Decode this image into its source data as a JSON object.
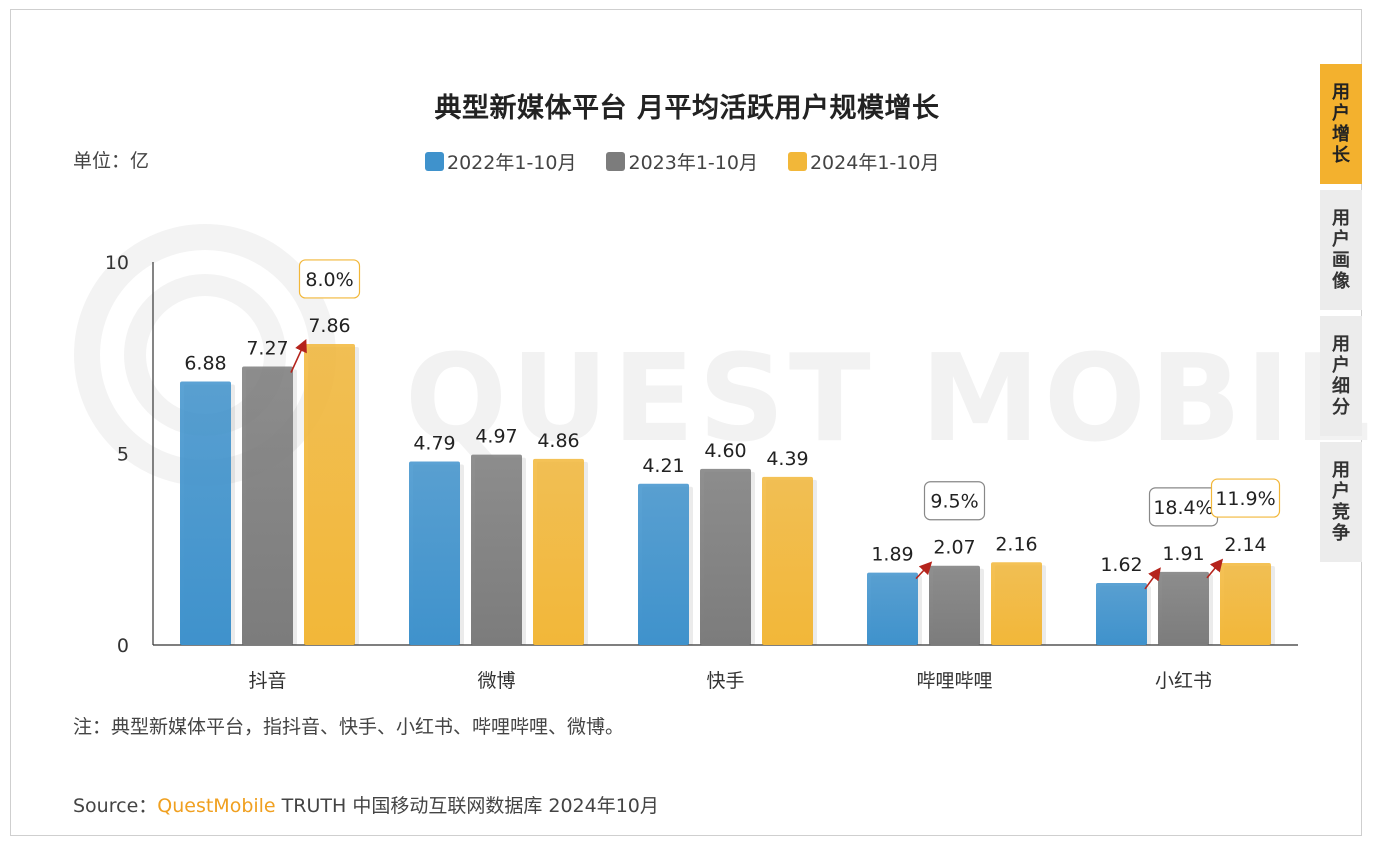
{
  "chart_data": {
    "type": "bar",
    "title": "典型新媒体平台 月平均活跃用户规模增长",
    "unit_label": "单位：亿",
    "categories": [
      "抖音",
      "微博",
      "快手",
      "哔哩哔哩",
      "小红书"
    ],
    "series": [
      {
        "name": "2022年1-10月",
        "color": "#3f92cc",
        "values": [
          6.88,
          4.79,
          4.21,
          1.89,
          1.62
        ]
      },
      {
        "name": "2023年1-10月",
        "color": "#7c7c7c",
        "values": [
          7.27,
          4.97,
          4.6,
          2.07,
          1.91
        ]
      },
      {
        "name": "2024年1-10月",
        "color": "#f2b739",
        "values": [
          7.86,
          4.86,
          4.39,
          2.16,
          2.14
        ]
      }
    ],
    "value_labels": [
      [
        "6.88",
        "4.79",
        "4.21",
        "1.89",
        "1.62"
      ],
      [
        "7.27",
        "4.97",
        "4.60",
        "2.07",
        "1.91"
      ],
      [
        "7.86",
        "4.86",
        "4.39",
        "2.16",
        "2.14"
      ]
    ],
    "ylim": [
      0,
      10
    ],
    "yticks": [
      "0",
      "5",
      "10"
    ],
    "annotations": [
      {
        "category": 0,
        "series": 2,
        "text": "8.0%",
        "box_color": "#f2b739"
      },
      {
        "category": 3,
        "series": 1,
        "text": "9.5%",
        "box_color": "#888888"
      },
      {
        "category": 4,
        "series": 1,
        "text": "18.4%",
        "box_color": "#888888"
      },
      {
        "category": 4,
        "series": 2,
        "text": "11.9%",
        "box_color": "#f2b739"
      }
    ],
    "growth_arrows": [
      {
        "category": 0,
        "from_series": 1,
        "to_series": 2
      },
      {
        "category": 3,
        "from_series": 0,
        "to_series": 1
      },
      {
        "category": 4,
        "from_series": 0,
        "to_series": 1
      },
      {
        "category": 4,
        "from_series": 1,
        "to_series": 2
      }
    ],
    "legend_position": "top-center",
    "grid": false
  },
  "watermark": "QUEST MOBILE",
  "note": "注：典型新媒体平台，指抖音、快手、小红书、哔哩哔哩、微博。",
  "source": {
    "prefix": "Source：",
    "brand": "QuestMobile",
    "suffix": " TRUTH 中国移动互联网数据库 2024年10月"
  },
  "side_tabs": [
    {
      "label": "用户增长",
      "active": true
    },
    {
      "label": "用户画像",
      "active": false
    },
    {
      "label": "用户细分",
      "active": false
    },
    {
      "label": "用户竞争",
      "active": false
    }
  ]
}
